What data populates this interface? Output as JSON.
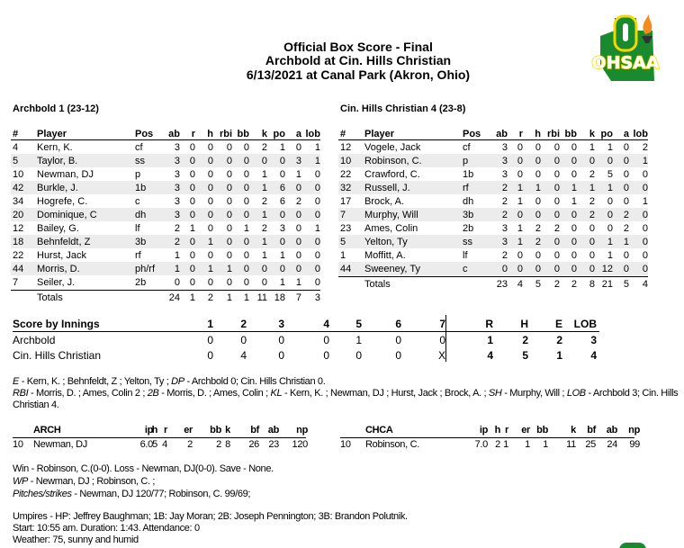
{
  "header": {
    "title": "Official Box Score - Final",
    "matchup": "Archbold at Cin. Hills Christian",
    "date_venue": "6/13/2021 at Canal Park (Akron, Ohio)",
    "logo_text": "OHSAA",
    "logo_color": "#1a8a2e",
    "logo_accent": "#f5d800"
  },
  "batting_headers": [
    "#",
    "Player",
    "Pos",
    "ab",
    "r",
    "h",
    "rbi",
    "bb",
    "k",
    "po",
    "a",
    "lob"
  ],
  "away": {
    "team_line": "Archbold 1 (23-12)",
    "players": [
      [
        "4",
        "Kern, K.",
        "cf",
        "3",
        "0",
        "0",
        "0",
        "0",
        "2",
        "1",
        "0",
        "1"
      ],
      [
        "5",
        "Taylor, B.",
        "ss",
        "3",
        "0",
        "0",
        "0",
        "0",
        "0",
        "0",
        "3",
        "1"
      ],
      [
        "10",
        "Newman, DJ",
        "p",
        "3",
        "0",
        "0",
        "0",
        "0",
        "1",
        "0",
        "1",
        "0"
      ],
      [
        "42",
        "Burkle, J.",
        "1b",
        "3",
        "0",
        "0",
        "0",
        "0",
        "1",
        "6",
        "0",
        "0"
      ],
      [
        "34",
        "Hogrefe, C.",
        "c",
        "3",
        "0",
        "0",
        "0",
        "0",
        "2",
        "6",
        "2",
        "0"
      ],
      [
        "20",
        "Dominique, C",
        "dh",
        "3",
        "0",
        "0",
        "0",
        "0",
        "1",
        "0",
        "0",
        "0"
      ],
      [
        "12",
        "Bailey, G.",
        "lf",
        "2",
        "1",
        "0",
        "0",
        "1",
        "2",
        "3",
        "0",
        "1"
      ],
      [
        "18",
        "Behnfeldt, Z",
        "3b",
        "2",
        "0",
        "1",
        "0",
        "0",
        "1",
        "0",
        "0",
        "0"
      ],
      [
        "22",
        "Hurst, Jack",
        "rf",
        "1",
        "0",
        "0",
        "0",
        "0",
        "1",
        "1",
        "0",
        "0"
      ],
      [
        "44",
        "Morris, D.",
        "ph/rf",
        "1",
        "0",
        "1",
        "1",
        "0",
        "0",
        "0",
        "0",
        "0"
      ],
      [
        "7",
        "Seiler, J.",
        "2b",
        "0",
        "0",
        "0",
        "0",
        "0",
        "0",
        "1",
        "1",
        "0"
      ]
    ],
    "totals": [
      "",
      "Totals",
      "",
      "24",
      "1",
      "2",
      "1",
      "1",
      "11",
      "18",
      "7",
      "3"
    ]
  },
  "home": {
    "team_line": "Cin. Hills Christian 4 (23-8)",
    "players": [
      [
        "12",
        "Vogele, Jack",
        "cf",
        "3",
        "0",
        "0",
        "0",
        "0",
        "1",
        "1",
        "0",
        "2"
      ],
      [
        "10",
        "Robinson, C.",
        "p",
        "3",
        "0",
        "0",
        "0",
        "0",
        "0",
        "0",
        "0",
        "1"
      ],
      [
        "22",
        "Crawford, C.",
        "1b",
        "3",
        "0",
        "0",
        "0",
        "0",
        "2",
        "5",
        "0",
        "0"
      ],
      [
        "32",
        "Russell, J.",
        "rf",
        "2",
        "1",
        "1",
        "0",
        "1",
        "1",
        "1",
        "0",
        "0"
      ],
      [
        "17",
        "Brock, A.",
        "dh",
        "2",
        "1",
        "0",
        "0",
        "1",
        "2",
        "0",
        "0",
        "1"
      ],
      [
        "7",
        "Murphy, Will",
        "3b",
        "2",
        "0",
        "0",
        "0",
        "0",
        "2",
        "0",
        "2",
        "0"
      ],
      [
        "23",
        "Ames, Colin",
        "2b",
        "3",
        "1",
        "2",
        "2",
        "0",
        "0",
        "0",
        "2",
        "0"
      ],
      [
        "5",
        "Yelton, Ty",
        "ss",
        "3",
        "1",
        "2",
        "0",
        "0",
        "0",
        "1",
        "1",
        "0"
      ],
      [
        "1",
        "Moffitt, A.",
        "lf",
        "2",
        "0",
        "0",
        "0",
        "0",
        "0",
        "1",
        "0",
        "0"
      ],
      [
        "44",
        "Sweeney, Ty",
        "c",
        "0",
        "0",
        "0",
        "0",
        "0",
        "0",
        "12",
        "0",
        "0"
      ]
    ],
    "totals": [
      "",
      "Totals",
      "",
      "23",
      "4",
      "5",
      "2",
      "2",
      "8",
      "21",
      "5",
      "4"
    ]
  },
  "score_by_innings": {
    "label": "Score by Innings",
    "innings": [
      "1",
      "2",
      "3",
      "4",
      "5",
      "6",
      "7"
    ],
    "totals_headers": [
      "R",
      "H",
      "E",
      "LOB"
    ],
    "rows": [
      {
        "team": "Archbold",
        "innings": [
          "0",
          "0",
          "0",
          "0",
          "1",
          "0",
          "0"
        ],
        "totals": [
          "1",
          "2",
          "2",
          "3"
        ]
      },
      {
        "team": "Cin. Hills Christian",
        "innings": [
          "0",
          "4",
          "0",
          "0",
          "0",
          "0",
          "X"
        ],
        "totals": [
          "4",
          "5",
          "1",
          "4"
        ]
      }
    ]
  },
  "notes": {
    "e_label": "E",
    "e_text": " - Kern, K. ; Behnfeldt, Z ; Yelton, Ty ; ",
    "dp_label": "DP",
    "dp_text": " - Archbold 0; Cin. Hills Christian 0.",
    "rbi_label": "RBI",
    "rbi_text": " - Morris, D. ; Ames, Colin 2 ; ",
    "2b_label": "2B",
    "2b_text": " - Morris, D. ; Ames, Colin ; ",
    "kl_label": "KL",
    "kl_text": " - Kern, K. ; Newman, DJ ; Hurst, Jack ; Brock, A. ; ",
    "sh_label": "SH",
    "sh_text": " - Murphy, Will ; ",
    "lob_label": "LOB",
    "lob_text": " - Archbold 3; Cin. Hills Christian 4."
  },
  "pitching_headers": [
    "ip",
    "h",
    "r",
    "er",
    "bb",
    "k",
    "bf",
    "ab",
    "np"
  ],
  "pitching": [
    {
      "team": "ARCH",
      "num": "10",
      "name": "Newman, DJ",
      "stats": [
        "6.0",
        "5",
        "4",
        "2",
        "2",
        "8",
        "26",
        "23",
        "120"
      ]
    },
    {
      "team": "CHCA",
      "num": "10",
      "name": "Robinson, C.",
      "stats": [
        "7.0",
        "2",
        "1",
        "1",
        "1",
        "11",
        "25",
        "24",
        "99"
      ]
    }
  ],
  "summary": {
    "decisions": "Win - Robinson, C.(0-0). Loss - Newman, DJ(0-0). Save - None.",
    "wp_label": "WP",
    "wp_text": " - Newman, DJ ; Robinson, C. ;",
    "pitches_label": "Pitches/strikes",
    "pitches_text": " - Newman, DJ 120/77; Robinson, C. 99/69;",
    "umpires": "Umpires - HP: Jeffrey Baughman; 1B: Jay Moran; 2B: Joseph Pennington; 3B: Brandon Polutnik.",
    "start": "Start: 10:55 am. Duration: 1:43. Attendance: 0",
    "weather": "Weather: 75, sunny and humid"
  }
}
